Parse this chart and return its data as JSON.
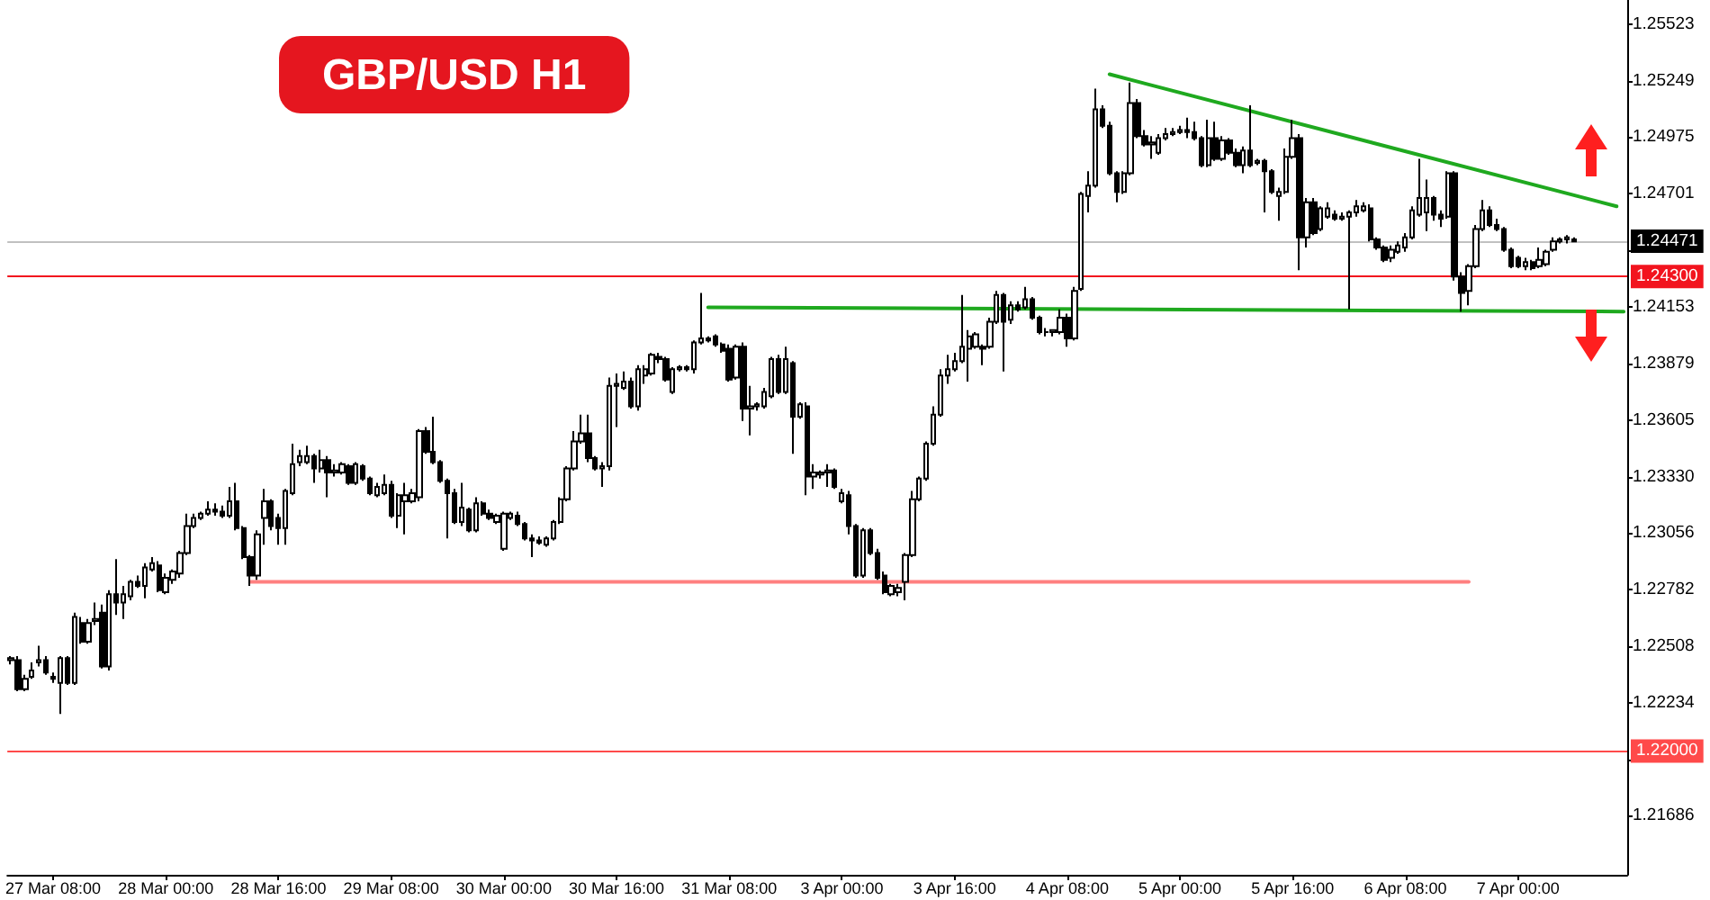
{
  "chart_data": {
    "type": "candlestick",
    "title": "GBP/USD H1",
    "categories": [
      null,
      null,
      null,
      null,
      null,
      null,
      "27 Mar 08:00",
      null,
      null,
      null,
      null,
      null,
      null,
      null,
      null,
      null,
      null,
      null,
      null,
      null,
      null,
      null,
      "28 Mar 00:00",
      null,
      null,
      null,
      null,
      null,
      null,
      null,
      null,
      null,
      null,
      null,
      null,
      null,
      null,
      null,
      "28 Mar 16:00",
      null,
      null,
      null,
      null,
      null,
      null,
      null,
      null,
      null,
      null,
      null,
      null,
      null,
      null,
      null,
      "29 Mar 08:00",
      null,
      null,
      null,
      null,
      null,
      null,
      null,
      null,
      null,
      null,
      null,
      null,
      null,
      null,
      null,
      "30 Mar 00:00",
      null,
      null,
      null,
      null,
      null,
      null,
      null,
      null,
      null,
      null,
      null,
      null,
      null,
      null,
      null,
      "30 Mar 16:00",
      null,
      null,
      null,
      null,
      null,
      null,
      null,
      null,
      null,
      null,
      null,
      null,
      null,
      null,
      null,
      "31 Mar 08:00",
      null,
      null,
      null,
      null,
      null,
      null,
      null,
      null,
      null,
      null,
      null,
      null,
      null,
      null,
      null,
      "3 Apr 00:00",
      null,
      null,
      null,
      null,
      null,
      null,
      null,
      null,
      null,
      null,
      null,
      null,
      null,
      null,
      null,
      "3 Apr 16:00",
      null,
      null,
      null,
      null,
      null,
      null,
      null,
      null,
      null,
      null,
      null,
      null,
      null,
      null,
      null,
      "4 Apr 08:00",
      null,
      null,
      null,
      null,
      null,
      null,
      null,
      null,
      null,
      null,
      null,
      null,
      null,
      null,
      null,
      "5 Apr 00:00",
      null,
      null,
      null,
      null,
      null,
      null,
      null,
      null,
      null,
      null,
      null,
      null,
      null,
      null,
      null,
      "5 Apr 16:00",
      null,
      null,
      null,
      null,
      null,
      null,
      null,
      null,
      null,
      null,
      null,
      null,
      null,
      null,
      null,
      "6 Apr 08:00",
      null,
      null,
      null,
      null,
      null,
      null,
      null,
      null,
      null,
      null,
      null,
      null,
      null,
      null,
      null,
      "7 Apr 00:00",
      null,
      null,
      null,
      null,
      null,
      null,
      null,
      null,
      null,
      null,
      null,
      null,
      null,
      null,
      null
    ],
    "ohlc": [
      [
        1.2244,
        1.2246,
        1.2242,
        1.2245
      ],
      [
        1.2244,
        1.2246,
        1.2229,
        1.223
      ],
      [
        1.223,
        1.2237,
        1.2229,
        1.2235
      ],
      [
        1.2236,
        1.2243,
        1.2235,
        1.2239
      ],
      [
        1.2243,
        1.2251,
        1.2241,
        1.2244
      ],
      [
        1.2244,
        1.2246,
        1.2237,
        1.2238
      ],
      [
        1.2236,
        1.2238,
        1.2233,
        1.2235
      ],
      [
        1.2233,
        1.2246,
        1.2218,
        1.2245
      ],
      [
        1.2245,
        1.2246,
        1.2232,
        1.2233
      ],
      [
        1.2233,
        1.2267,
        1.2232,
        1.2265
      ],
      [
        1.2262,
        1.2265,
        1.2252,
        1.2253
      ],
      [
        1.2253,
        1.2264,
        1.2252,
        1.2262
      ],
      [
        1.2263,
        1.2272,
        1.2261,
        1.2264
      ],
      [
        1.2267,
        1.2271,
        1.224,
        1.2241
      ],
      [
        1.2241,
        1.2278,
        1.2239,
        1.2276
      ],
      [
        1.2276,
        1.2293,
        1.2266,
        1.2272
      ],
      [
        1.2272,
        1.228,
        1.2264,
        1.2276
      ],
      [
        1.2275,
        1.2283,
        1.2273,
        1.2282
      ],
      [
        1.2282,
        1.2285,
        1.2279,
        1.228
      ],
      [
        1.228,
        1.2291,
        1.2274,
        1.2289
      ],
      [
        1.2288,
        1.2294,
        1.2287,
        1.2291
      ],
      [
        1.229,
        1.2292,
        1.2277,
        1.2278
      ],
      [
        1.2277,
        1.2286,
        1.2276,
        1.2284
      ],
      [
        1.2283,
        1.2288,
        1.2281,
        1.2287
      ],
      [
        1.2286,
        1.2297,
        1.2284,
        1.2296
      ],
      [
        1.2296,
        1.2315,
        1.2295,
        1.2309
      ],
      [
        1.2309,
        1.2315,
        1.2308,
        1.2313
      ],
      [
        1.2313,
        1.2316,
        1.2312,
        1.2315
      ],
      [
        1.2315,
        1.2321,
        1.2314,
        1.2317
      ],
      [
        1.2317,
        1.232,
        1.2314,
        1.2316
      ],
      [
        1.2316,
        1.2319,
        1.2313,
        1.2314
      ],
      [
        1.2314,
        1.2328,
        1.2313,
        1.2321
      ],
      [
        1.2321,
        1.233,
        1.2307,
        1.2308
      ],
      [
        1.2308,
        1.2309,
        1.2293,
        1.2294
      ],
      [
        1.2294,
        1.2295,
        1.228,
        1.2285
      ],
      [
        1.2285,
        1.2307,
        1.2283,
        1.2305
      ],
      [
        1.2313,
        1.2327,
        1.23,
        1.2321
      ],
      [
        1.2321,
        1.2322,
        1.2307,
        1.2309
      ],
      [
        1.2313,
        1.2315,
        1.23,
        1.2308
      ],
      [
        1.2308,
        1.2327,
        1.23,
        1.2326
      ],
      [
        1.2325,
        1.2349,
        1.2324,
        1.2339
      ],
      [
        1.234,
        1.2346,
        1.2338,
        1.2343
      ],
      [
        1.234,
        1.2348,
        1.2339,
        1.2343
      ],
      [
        1.2343,
        1.2344,
        1.233,
        1.2337
      ],
      [
        1.2337,
        1.2346,
        1.2335,
        1.2341
      ],
      [
        1.2341,
        1.2343,
        1.2323,
        1.2335
      ],
      [
        1.2335,
        1.2339,
        1.2333,
        1.2336
      ],
      [
        1.2335,
        1.234,
        1.2334,
        1.2339
      ],
      [
        1.2338,
        1.2339,
        1.2329,
        1.233
      ],
      [
        1.233,
        1.234,
        1.2329,
        1.2339
      ],
      [
        1.2338,
        1.2339,
        1.2331,
        1.2332
      ],
      [
        1.2332,
        1.2333,
        1.2324,
        1.2325
      ],
      [
        1.2324,
        1.233,
        1.2323,
        1.2328
      ],
      [
        1.2325,
        1.2334,
        1.2324,
        1.2329
      ],
      [
        1.2329,
        1.2331,
        1.2313,
        1.2314
      ],
      [
        1.2314,
        1.2325,
        1.2308,
        1.2324
      ],
      [
        1.2321,
        1.233,
        1.2305,
        1.2324
      ],
      [
        1.2321,
        1.2327,
        1.232,
        1.2325
      ],
      [
        1.2323,
        1.2356,
        1.2321,
        1.2355
      ],
      [
        1.2355,
        1.2357,
        1.2344,
        1.2345
      ],
      [
        1.2345,
        1.2362,
        1.2339,
        1.234
      ],
      [
        1.234,
        1.2341,
        1.233,
        1.2331
      ],
      [
        1.2331,
        1.2332,
        1.2303,
        1.2325
      ],
      [
        1.2325,
        1.2327,
        1.231,
        1.2311
      ],
      [
        1.2311,
        1.233,
        1.2309,
        1.2318
      ],
      [
        1.2317,
        1.2318,
        1.2306,
        1.2307
      ],
      [
        1.2307,
        1.2323,
        1.2306,
        1.232
      ],
      [
        1.232,
        1.2321,
        1.2314,
        1.2315
      ],
      [
        1.2315,
        1.2317,
        1.2312,
        1.2313
      ],
      [
        1.2311,
        1.2315,
        1.231,
        1.2314
      ],
      [
        1.2298,
        1.2316,
        1.2297,
        1.2315
      ],
      [
        1.2313,
        1.2316,
        1.2312,
        1.2315
      ],
      [
        1.2314,
        1.2316,
        1.2309,
        1.231
      ],
      [
        1.231,
        1.2311,
        1.2302,
        1.2303
      ],
      [
        1.2303,
        1.2305,
        1.2294,
        1.2302
      ],
      [
        1.2302,
        1.2304,
        1.23,
        1.2301
      ],
      [
        1.23,
        1.2304,
        1.2299,
        1.2303
      ],
      [
        1.2303,
        1.2312,
        1.2302,
        1.2311
      ],
      [
        1.2311,
        1.2323,
        1.231,
        1.2322
      ],
      [
        1.2322,
        1.2338,
        1.2321,
        1.2337
      ],
      [
        1.2337,
        1.2355,
        1.2336,
        1.235
      ],
      [
        1.235,
        1.2363,
        1.2349,
        1.2354
      ],
      [
        1.2354,
        1.2363,
        1.234,
        1.2342
      ],
      [
        1.2342,
        1.2343,
        1.2336,
        1.2337
      ],
      [
        1.2337,
        1.234,
        1.2328,
        1.2338
      ],
      [
        1.2338,
        1.2381,
        1.2336,
        1.2377
      ],
      [
        1.2377,
        1.2383,
        1.2357,
        1.2378
      ],
      [
        1.2376,
        1.2384,
        1.2375,
        1.2379
      ],
      [
        1.2379,
        1.2381,
        1.2366,
        1.2367
      ],
      [
        1.2367,
        1.2387,
        1.2365,
        1.2385
      ],
      [
        1.2382,
        1.2387,
        1.2378,
        1.2385
      ],
      [
        1.2383,
        1.2393,
        1.2382,
        1.2392
      ],
      [
        1.2391,
        1.2393,
        1.2388,
        1.239
      ],
      [
        1.239,
        1.2391,
        1.2379,
        1.238
      ],
      [
        1.2374,
        1.2386,
        1.2373,
        1.2385
      ],
      [
        1.2385,
        1.2387,
        1.2384,
        1.2386
      ],
      [
        1.2386,
        1.2387,
        1.2384,
        1.2385
      ],
      [
        1.2385,
        1.2399,
        1.2383,
        1.2398
      ],
      [
        1.2398,
        1.2422,
        1.2397,
        1.24
      ],
      [
        1.24,
        1.2401,
        1.2398,
        1.2399
      ],
      [
        1.2401,
        1.2402,
        1.2396,
        1.2397
      ],
      [
        1.2397,
        1.2398,
        1.2393,
        1.2394
      ],
      [
        1.2395,
        1.2397,
        1.2379,
        1.238
      ],
      [
        1.2381,
        1.2397,
        1.238,
        1.2396
      ],
      [
        1.2396,
        1.2398,
        1.236,
        1.2366
      ],
      [
        1.2366,
        1.2377,
        1.2353,
        1.2367
      ],
      [
        1.2367,
        1.2369,
        1.2365,
        1.2368
      ],
      [
        1.2367,
        1.2376,
        1.2366,
        1.2374
      ],
      [
        1.2372,
        1.2391,
        1.2371,
        1.239
      ],
      [
        1.239,
        1.2392,
        1.2373,
        1.2374
      ],
      [
        1.2374,
        1.2396,
        1.2373,
        1.239
      ],
      [
        1.2388,
        1.2389,
        1.2344,
        1.2362
      ],
      [
        1.2362,
        1.2369,
        1.2361,
        1.2368
      ],
      [
        1.2367,
        1.2369,
        1.2324,
        1.2333
      ],
      [
        1.2333,
        1.2339,
        1.2327,
        1.2335
      ],
      [
        1.2334,
        1.2336,
        1.2332,
        1.2335
      ],
      [
        1.2335,
        1.2339,
        1.2328,
        1.2336
      ],
      [
        1.2336,
        1.2337,
        1.2327,
        1.2328
      ],
      [
        1.2321,
        1.2327,
        1.232,
        1.2325
      ],
      [
        1.2324,
        1.2326,
        1.2305,
        1.2309
      ],
      [
        1.2309,
        1.231,
        1.2284,
        1.2285
      ],
      [
        1.2285,
        1.2308,
        1.2284,
        1.2307
      ],
      [
        1.2307,
        1.2308,
        1.2295,
        1.2296
      ],
      [
        1.2296,
        1.2298,
        1.2283,
        1.2284
      ],
      [
        1.2285,
        1.2287,
        1.2276,
        1.2277
      ],
      [
        1.2276,
        1.2281,
        1.2275,
        1.228
      ],
      [
        1.2277,
        1.2281,
        1.2275,
        1.2279
      ],
      [
        1.2282,
        1.2296,
        1.2273,
        1.2295
      ],
      [
        1.2295,
        1.2326,
        1.2294,
        1.2322
      ],
      [
        1.2322,
        1.2333,
        1.2321,
        1.2332
      ],
      [
        1.2332,
        1.235,
        1.2331,
        1.2349
      ],
      [
        1.2349,
        1.2367,
        1.2348,
        1.2363
      ],
      [
        1.2363,
        1.2385,
        1.2362,
        1.2382
      ],
      [
        1.2382,
        1.2392,
        1.2378,
        1.2385
      ],
      [
        1.2385,
        1.2393,
        1.2384,
        1.2389
      ],
      [
        1.2389,
        1.2421,
        1.2388,
        1.2396
      ],
      [
        1.2395,
        1.2404,
        1.2379,
        1.2401
      ],
      [
        1.2396,
        1.2403,
        1.2395,
        1.2402
      ],
      [
        1.2396,
        1.2397,
        1.2387,
        1.2395
      ],
      [
        1.2396,
        1.241,
        1.2395,
        1.2408
      ],
      [
        1.2408,
        1.2423,
        1.2407,
        1.2421
      ],
      [
        1.2421,
        1.2422,
        1.2384,
        1.2408
      ],
      [
        1.2409,
        1.2418,
        1.2407,
        1.2416
      ],
      [
        1.2416,
        1.2418,
        1.2413,
        1.2414
      ],
      [
        1.2415,
        1.2425,
        1.2414,
        1.2419
      ],
      [
        1.2419,
        1.242,
        1.2409,
        1.241
      ],
      [
        1.241,
        1.2411,
        1.2402,
        1.2403
      ],
      [
        1.2403,
        1.2405,
        1.2401,
        1.2403
      ],
      [
        1.2403,
        1.2404,
        1.2401,
        1.2404
      ],
      [
        1.2403,
        1.2414,
        1.2402,
        1.241
      ],
      [
        1.241,
        1.2412,
        1.2396,
        1.24
      ],
      [
        1.24,
        1.2425,
        1.2399,
        1.2423
      ],
      [
        1.2424,
        1.2471,
        1.2423,
        1.247
      ],
      [
        1.2469,
        1.2481,
        1.2461,
        1.2474
      ],
      [
        1.2474,
        1.2521,
        1.2473,
        1.2511
      ],
      [
        1.2511,
        1.2513,
        1.2502,
        1.2503
      ],
      [
        1.2503,
        1.2505,
        1.2479,
        1.248
      ],
      [
        1.248,
        1.2481,
        1.2466,
        1.2471
      ],
      [
        1.2471,
        1.2481,
        1.247,
        1.248
      ],
      [
        1.248,
        1.2524,
        1.2479,
        1.2514
      ],
      [
        1.2514,
        1.2516,
        1.2497,
        1.2498
      ],
      [
        1.2498,
        1.2501,
        1.2493,
        1.2494
      ],
      [
        1.2494,
        1.2498,
        1.2487,
        1.2495
      ],
      [
        1.249,
        1.2499,
        1.2489,
        1.2497
      ],
      [
        1.2497,
        1.2502,
        1.2496,
        1.2499
      ],
      [
        1.2499,
        1.2502,
        1.2498,
        1.25
      ],
      [
        1.25,
        1.2503,
        1.2499,
        1.2501
      ],
      [
        1.2501,
        1.2507,
        1.2497,
        1.25
      ],
      [
        1.25,
        1.2505,
        1.2496,
        1.2497
      ],
      [
        1.2497,
        1.2498,
        1.2483,
        1.2484
      ],
      [
        1.2484,
        1.2506,
        1.2483,
        1.2497
      ],
      [
        1.2497,
        1.2505,
        1.2486,
        1.2487
      ],
      [
        1.2487,
        1.2498,
        1.2486,
        1.2496
      ],
      [
        1.2496,
        1.2497,
        1.2489,
        1.249
      ],
      [
        1.249,
        1.2492,
        1.2483,
        1.2484
      ],
      [
        1.2484,
        1.2493,
        1.248,
        1.2491
      ],
      [
        1.2491,
        1.2513,
        1.2483,
        1.2484
      ],
      [
        1.2485,
        1.2487,
        1.2484,
        1.2486
      ],
      [
        1.2486,
        1.2487,
        1.2461,
        1.2481
      ],
      [
        1.2481,
        1.2482,
        1.247,
        1.2471
      ],
      [
        1.2469,
        1.2473,
        1.2457,
        1.2471
      ],
      [
        1.2471,
        1.2492,
        1.247,
        1.2488
      ],
      [
        1.2488,
        1.2506,
        1.2487,
        1.2497
      ],
      [
        1.2497,
        1.2499,
        1.2433,
        1.2449
      ],
      [
        1.2449,
        1.2468,
        1.2444,
        1.2466
      ],
      [
        1.2466,
        1.2468,
        1.245,
        1.2451
      ],
      [
        1.2453,
        1.2464,
        1.2452,
        1.2463
      ],
      [
        1.2459,
        1.2466,
        1.2458,
        1.2463
      ],
      [
        1.246,
        1.2462,
        1.2457,
        1.2458
      ],
      [
        1.2458,
        1.2461,
        1.2457,
        1.2459
      ],
      [
        1.2459,
        1.2462,
        1.2414,
        1.2461
      ],
      [
        1.2461,
        1.2467,
        1.2459,
        1.2464
      ],
      [
        1.2462,
        1.2466,
        1.2461,
        1.2464
      ],
      [
        1.2463,
        1.2465,
        1.2447,
        1.2448
      ],
      [
        1.2448,
        1.2449,
        1.2443,
        1.2444
      ],
      [
        1.2444,
        1.2445,
        1.2437,
        1.2438
      ],
      [
        1.2439,
        1.2445,
        1.2437,
        1.2443
      ],
      [
        1.2442,
        1.2447,
        1.2441,
        1.2445
      ],
      [
        1.2444,
        1.2451,
        1.2442,
        1.2449
      ],
      [
        1.2449,
        1.2464,
        1.2448,
        1.2462
      ],
      [
        1.246,
        1.2487,
        1.2459,
        1.2468
      ],
      [
        1.2461,
        1.2477,
        1.2452,
        1.2468
      ],
      [
        1.2468,
        1.2469,
        1.2457,
        1.246
      ],
      [
        1.246,
        1.2462,
        1.2454,
        1.2458
      ],
      [
        1.2459,
        1.2481,
        1.2458,
        1.248
      ],
      [
        1.248,
        1.2481,
        1.2428,
        1.243
      ],
      [
        1.243,
        1.2432,
        1.2413,
        1.2422
      ],
      [
        1.2423,
        1.2436,
        1.2416,
        1.2435
      ],
      [
        1.2435,
        1.2455,
        1.2434,
        1.2453
      ],
      [
        1.2453,
        1.2467,
        1.2452,
        1.2462
      ],
      [
        1.2462,
        1.2464,
        1.2454,
        1.2455
      ],
      [
        1.2455,
        1.2458,
        1.2452,
        1.2453
      ],
      [
        1.2453,
        1.2454,
        1.2442,
        1.2443
      ],
      [
        1.2443,
        1.2444,
        1.2434,
        1.2435
      ],
      [
        1.2439,
        1.244,
        1.2434,
        1.2435
      ],
      [
        1.2435,
        1.2439,
        1.2433,
        1.2437
      ],
      [
        1.2437,
        1.2438,
        1.2433,
        1.2434
      ],
      [
        1.2435,
        1.2444,
        1.2434,
        1.2438
      ],
      [
        1.2436,
        1.2443,
        1.2435,
        1.2442
      ],
      [
        1.2443,
        1.2449,
        1.2442,
        1.2447
      ],
      [
        1.2447,
        1.2449,
        1.2446,
        1.2448
      ],
      [
        1.2448,
        1.245,
        1.2446,
        1.2449
      ],
      [
        1.2448,
        1.2449,
        1.2447,
        1.2447
      ],
      null,
      null,
      null,
      null,
      null,
      null,
      null
    ],
    "series": [
      {
        "type": "line",
        "color": "#1fa91f",
        "values": [
          null,
          null,
          null,
          null,
          null,
          null,
          null,
          null,
          null,
          null,
          null,
          null,
          null,
          null,
          null,
          null,
          null,
          null,
          null,
          null,
          null,
          null,
          null,
          null,
          null,
          null,
          null,
          null,
          null,
          null,
          null,
          null,
          null,
          null,
          null,
          null,
          null,
          null,
          null,
          null,
          null,
          null,
          null,
          null,
          null,
          null,
          null,
          null,
          null,
          null,
          null,
          null,
          null,
          null,
          null,
          null,
          null,
          null,
          null,
          null,
          null,
          null,
          null,
          null,
          null,
          null,
          null,
          null,
          null,
          null,
          null,
          null,
          null,
          null,
          null,
          null,
          null,
          null,
          null,
          null,
          null,
          null,
          null,
          null,
          null,
          null,
          null,
          null,
          null,
          null,
          null,
          null,
          null,
          null,
          null,
          null,
          null,
          null,
          null,
          null,
          null,
          null,
          null,
          null,
          null,
          null,
          null,
          null,
          null,
          null,
          null,
          null,
          null,
          null,
          null,
          null,
          null,
          null,
          null,
          null,
          null,
          null,
          null,
          null,
          null,
          null,
          null,
          null,
          null,
          null,
          null,
          null,
          null,
          null,
          null,
          null,
          null,
          null,
          null,
          null,
          null,
          null,
          null,
          null,
          null,
          null,
          null,
          null,
          null,
          null,
          null,
          null,
          null,
          null,
          null,
          null,
          1.2528,
          null,
          null,
          null,
          null,
          null,
          null,
          null,
          null,
          null,
          null,
          null,
          null,
          null,
          null,
          null,
          null,
          null,
          null,
          null,
          null,
          null,
          null,
          null,
          null,
          null,
          null,
          null,
          null,
          null,
          null,
          null,
          null,
          null,
          null,
          null,
          null,
          null,
          null,
          null,
          null,
          null,
          null,
          null,
          null,
          null,
          null,
          null,
          null,
          null,
          null,
          null,
          null,
          null,
          null,
          null,
          null,
          null,
          null,
          null,
          null,
          null,
          null,
          null,
          null,
          null,
          null,
          null,
          null,
          null,
          null,
          null,
          1.2464,
          null
        ]
      },
      {
        "type": "line",
        "color": "#1fa91f",
        "values": [
          null,
          null,
          null,
          null,
          null,
          null,
          null,
          null,
          null,
          null,
          null,
          null,
          null,
          null,
          null,
          null,
          null,
          null,
          null,
          null,
          null,
          null,
          null,
          null,
          null,
          null,
          null,
          null,
          null,
          null,
          null,
          null,
          null,
          null,
          null,
          null,
          null,
          null,
          null,
          null,
          null,
          null,
          null,
          null,
          null,
          null,
          null,
          null,
          null,
          null,
          null,
          null,
          null,
          null,
          null,
          null,
          null,
          null,
          null,
          null,
          null,
          null,
          null,
          null,
          null,
          null,
          null,
          null,
          null,
          null,
          null,
          null,
          null,
          null,
          null,
          null,
          null,
          null,
          null,
          null,
          null,
          null,
          null,
          null,
          null,
          null,
          null,
          null,
          null,
          null,
          null,
          null,
          null,
          null,
          null,
          null,
          null,
          null,
          null,
          1.2415,
          null,
          null,
          null,
          null,
          null,
          null,
          null,
          null,
          null,
          null,
          null,
          null,
          null,
          null,
          null,
          null,
          null,
          null,
          null,
          null,
          null,
          null,
          null,
          null,
          null,
          null,
          null,
          null,
          null,
          null,
          null,
          null,
          null,
          null,
          null,
          null,
          null,
          null,
          null,
          null,
          null,
          null,
          null,
          null,
          null,
          null,
          null,
          null,
          null,
          null,
          null,
          null,
          null,
          null,
          null,
          null,
          null,
          null,
          null,
          null,
          null,
          null,
          null,
          null,
          null,
          null,
          null,
          null,
          null,
          null,
          null,
          null,
          null,
          null,
          null,
          null,
          null,
          null,
          null,
          null,
          null,
          null,
          null,
          null,
          null,
          null,
          null,
          null,
          null,
          null,
          null,
          null,
          null,
          null,
          null,
          null,
          null,
          null,
          null,
          null,
          null,
          null,
          null,
          null,
          null,
          null,
          null,
          null,
          null,
          null,
          null,
          null,
          null,
          null,
          null,
          null,
          null,
          null,
          null,
          null,
          null,
          null,
          null,
          null,
          null,
          null,
          null,
          null,
          null,
          1.2413
        ]
      },
      {
        "type": "line",
        "color": "#ff8080",
        "values": [
          null,
          null,
          null,
          null,
          null,
          null,
          null,
          null,
          null,
          null,
          null,
          null,
          null,
          null,
          null,
          null,
          null,
          null,
          null,
          null,
          null,
          null,
          null,
          null,
          null,
          null,
          null,
          null,
          null,
          null,
          null,
          null,
          null,
          null,
          1.2282,
          null,
          null,
          null,
          null,
          null,
          null,
          null,
          null,
          null,
          null,
          null,
          null,
          null,
          null,
          null,
          null,
          null,
          null,
          null,
          null,
          null,
          null,
          null,
          null,
          null,
          null,
          null,
          null,
          null,
          null,
          null,
          null,
          null,
          null,
          null,
          null,
          null,
          null,
          null,
          null,
          null,
          null,
          null,
          null,
          null,
          null,
          null,
          null,
          null,
          null,
          null,
          null,
          null,
          null,
          null,
          null,
          null,
          null,
          null,
          null,
          null,
          null,
          null,
          null,
          null,
          null,
          null,
          null,
          null,
          null,
          null,
          null,
          null,
          null,
          null,
          null,
          null,
          null,
          null,
          null,
          null,
          null,
          null,
          null,
          null,
          null,
          null,
          null,
          null,
          null,
          null,
          null,
          null,
          null,
          null,
          null,
          null,
          null,
          null,
          null,
          null,
          null,
          null,
          null,
          null,
          null,
          null,
          null,
          null,
          null,
          null,
          null,
          null,
          null,
          null,
          null,
          null,
          null,
          null,
          null,
          null,
          null,
          null,
          null,
          null,
          null,
          null,
          null,
          null,
          null,
          null,
          null,
          null,
          null,
          null,
          null,
          null,
          null,
          null,
          null,
          null,
          null,
          null,
          null,
          null,
          null,
          null,
          null,
          null,
          null,
          null,
          null,
          null,
          null,
          null,
          null,
          null,
          null,
          null,
          null,
          null,
          null,
          null,
          null,
          null,
          null,
          null,
          null,
          null,
          null,
          null,
          null,
          1.2282,
          null,
          null,
          null,
          null,
          null,
          null,
          null,
          null,
          null,
          null,
          null,
          null,
          null,
          null,
          null,
          null,
          null,
          null,
          null,
          null,
          null,
          null
        ]
      }
    ],
    "ylim": [
      1.214,
      1.2564
    ],
    "yticks": [
      1.21686,
      {
        "value": 1.2196,
        "label": null
      },
      1.22234,
      1.22508,
      1.22782,
      1.23056,
      {
        "value": 1.2333,
        "label": "1.23330"
      },
      1.23605,
      1.23879,
      1.24153,
      {
        "value": 1.24427,
        "label": null
      },
      1.24701,
      1.24975,
      1.25249,
      1.25523
    ],
    "ref_lines": [
      {
        "axis": "y",
        "value": 1.24471,
        "label": "1.24471"
      },
      {
        "axis": "y",
        "value": 1.243,
        "label": "1.24300",
        "color": "#f2141e"
      },
      {
        "axis": "y",
        "value": 1.22,
        "label": "1.22000",
        "color": "#ff4a4a"
      }
    ]
  }
}
